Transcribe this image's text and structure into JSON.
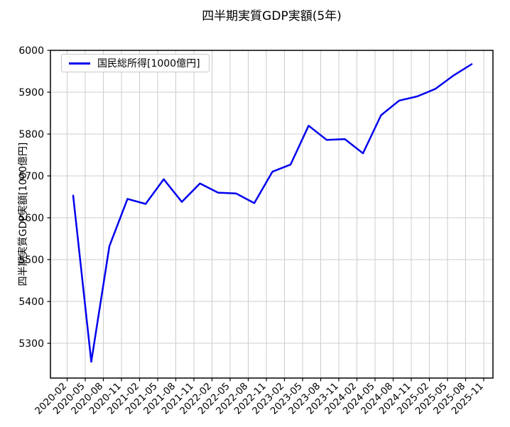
{
  "chart_data": {
    "type": "line",
    "title": "四半期実質GDP実額(5年)",
    "ylabel": "四半期実質GDP実額[1000億円]",
    "xlabel": "",
    "grid": true,
    "legend_position": "upper-left",
    "y_ticks": [
      5300,
      5400,
      5500,
      5600,
      5700,
      5800,
      5900,
      6000
    ],
    "ylim_top": 6000,
    "x_tick_labels": [
      "2020-02",
      "2020-05",
      "2020-08",
      "2020-11",
      "2021-02",
      "2021-05",
      "2021-08",
      "2021-11",
      "2022-02",
      "2022-05",
      "2022-08",
      "2022-11",
      "2023-02",
      "2023-05",
      "2023-08",
      "2023-11",
      "2024-02",
      "2024-05",
      "2024-08",
      "2024-11",
      "2025-02",
      "2025-05",
      "2025-08",
      "2025-11"
    ],
    "x_offset_months_after_tick": 1,
    "series": [
      {
        "name": "国民総所得[1000億円]",
        "color": "#0000ee",
        "x": [
          "2020-03",
          "2020-06",
          "2020-09",
          "2020-12",
          "2021-03",
          "2021-06",
          "2021-09",
          "2021-12",
          "2022-03",
          "2022-06",
          "2022-09",
          "2022-12",
          "2023-03",
          "2023-06",
          "2023-09",
          "2023-12",
          "2024-03",
          "2024-06",
          "2024-09",
          "2024-12",
          "2025-03",
          "2025-06",
          "2025-09"
        ],
        "values": [
          5653,
          5256,
          5532,
          5645,
          5633,
          5692,
          5638,
          5682,
          5660,
          5658,
          5635,
          5710,
          5727,
          5820,
          5786,
          5788,
          5754,
          5845,
          5880,
          5890,
          5908,
          5940,
          5967
        ]
      }
    ],
    "colors": {
      "line": "#0000ee",
      "grid": "#cccccc",
      "spine": "#000000",
      "background": "#ffffff"
    },
    "legend": {
      "entries": [
        {
          "label": "国民総所得[1000億円]",
          "color": "#0000ee"
        }
      ]
    }
  }
}
